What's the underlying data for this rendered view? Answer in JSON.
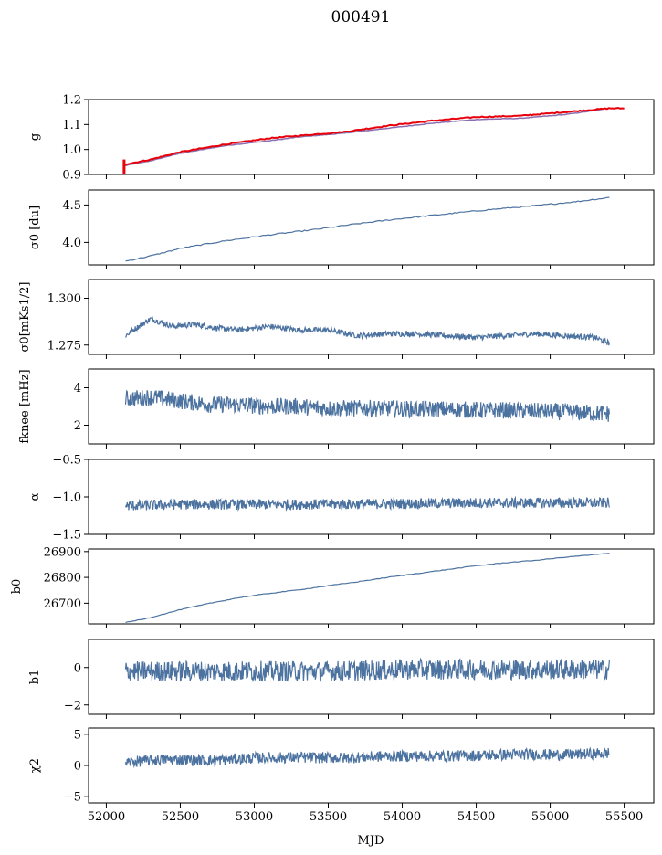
{
  "figure": {
    "title": "000491",
    "xlabel": "MJD",
    "xlim": [
      51880,
      55700
    ],
    "xticks": [
      "52000",
      "52500",
      "53000",
      "53500",
      "54000",
      "54500",
      "55000",
      "55500"
    ],
    "line_color": "#4c72a0",
    "highlight_color": "#e8000b",
    "purple_color": "#8a6fb0"
  },
  "chart_data": [
    {
      "type": "line",
      "ylabel": "g",
      "ylim": [
        0.9,
        1.2
      ],
      "yticks": [
        "0.9",
        "1.0",
        "1.1",
        "1.2"
      ],
      "series": [
        {
          "x": [
            52120,
            52300,
            52500,
            52800,
            53100,
            53300,
            53600,
            53900,
            54200,
            54500,
            54800,
            55100,
            55350
          ],
          "values": [
            0.935,
            0.955,
            0.985,
            1.015,
            1.035,
            1.05,
            1.065,
            1.085,
            1.105,
            1.12,
            1.125,
            1.14,
            1.16
          ]
        },
        {
          "x": [
            52120,
            52300,
            52500,
            52800,
            53100,
            53300,
            53600,
            53900,
            54200,
            54500,
            54800,
            55100,
            55400,
            55500
          ],
          "values": [
            0.94,
            0.96,
            0.99,
            1.02,
            1.045,
            1.055,
            1.07,
            1.095,
            1.115,
            1.13,
            1.135,
            1.15,
            1.165,
            1.165
          ]
        }
      ]
    },
    {
      "type": "line",
      "ylabel": "σ0 [du]",
      "ylim": [
        3.7,
        4.7
      ],
      "yticks": [
        "4.0",
        "4.5"
      ],
      "series": [
        {
          "x": [
            52130,
            52300,
            52500,
            52800,
            53100,
            53400,
            53700,
            54000,
            54300,
            54600,
            54900,
            55200,
            55400
          ],
          "values": [
            3.75,
            3.82,
            3.92,
            4.02,
            4.1,
            4.17,
            4.25,
            4.32,
            4.38,
            4.44,
            4.49,
            4.55,
            4.6
          ]
        }
      ]
    },
    {
      "type": "line",
      "ylabel": "σ0[mKs1/2]",
      "ylim": [
        1.27,
        1.31
      ],
      "yticks": [
        "1.275",
        "1.300"
      ],
      "series": [
        {
          "x": [
            52130,
            52200,
            52300,
            52450,
            52600,
            52750,
            52900,
            53100,
            53300,
            53500,
            53700,
            53900,
            54100,
            54300,
            54500,
            54700,
            54900,
            55100,
            55300,
            55400
          ],
          "values": [
            1.28,
            1.284,
            1.289,
            1.285,
            1.286,
            1.284,
            1.283,
            1.285,
            1.283,
            1.283,
            1.28,
            1.281,
            1.281,
            1.28,
            1.279,
            1.28,
            1.281,
            1.28,
            1.279,
            1.276
          ]
        }
      ]
    },
    {
      "type": "line",
      "ylabel": "fknee [mHz]",
      "ylim": [
        1,
        5
      ],
      "yticks": [
        "2",
        "4"
      ],
      "series": [
        {
          "x": [
            52130,
            52300,
            52500,
            52700,
            52900,
            53100,
            53300,
            53500,
            53700,
            53900,
            54100,
            54300,
            54500,
            54700,
            54900,
            55100,
            55300,
            55400
          ],
          "values": [
            3.4,
            3.5,
            3.3,
            3.1,
            3.1,
            3.0,
            3.0,
            2.9,
            2.9,
            2.9,
            2.85,
            2.85,
            2.8,
            2.8,
            2.75,
            2.7,
            2.65,
            2.6
          ]
        }
      ]
    },
    {
      "type": "line",
      "ylabel": "α",
      "ylim": [
        -1.5,
        -0.5
      ],
      "yticks": [
        "−1.5",
        "−1.0",
        "−0.5"
      ],
      "series": [
        {
          "x": [
            52130,
            52500,
            53000,
            53500,
            54000,
            54500,
            55000,
            55400
          ],
          "values": [
            -1.12,
            -1.1,
            -1.1,
            -1.1,
            -1.09,
            -1.08,
            -1.08,
            -1.08
          ]
        }
      ]
    },
    {
      "type": "line",
      "ylabel": "b0",
      "ylim": [
        26620,
        26910
      ],
      "yticks": [
        "26700",
        "26800",
        "26900"
      ],
      "series": [
        {
          "x": [
            52130,
            52300,
            52500,
            52700,
            52900,
            53100,
            53300,
            53500,
            53700,
            53900,
            54100,
            54300,
            54500,
            54700,
            54900,
            55100,
            55300,
            55400
          ],
          "values": [
            26625,
            26645,
            26675,
            26700,
            26722,
            26738,
            26752,
            26768,
            26783,
            26800,
            26815,
            26830,
            26845,
            26857,
            26866,
            26878,
            26888,
            26893
          ]
        }
      ]
    },
    {
      "type": "line",
      "ylabel": "b1",
      "ylim": [
        -2.5,
        1.5
      ],
      "yticks": [
        "−2",
        "0"
      ],
      "series": [
        {
          "x": [
            52130,
            52500,
            53000,
            53500,
            54000,
            54500,
            55000,
            55400
          ],
          "values": [
            -0.2,
            -0.2,
            -0.2,
            -0.2,
            -0.1,
            -0.1,
            -0.1,
            -0.1
          ]
        }
      ]
    },
    {
      "type": "line",
      "ylabel": "χ2",
      "ylim": [
        -6,
        6
      ],
      "yticks": [
        "−5",
        "0",
        "5"
      ],
      "series": [
        {
          "x": [
            52130,
            52400,
            52700,
            53000,
            53300,
            53600,
            53900,
            54200,
            54500,
            54800,
            55100,
            55400
          ],
          "values": [
            0.5,
            1.0,
            0.8,
            1.2,
            1.3,
            1.2,
            1.5,
            1.5,
            1.6,
            1.8,
            1.7,
            2.0
          ]
        }
      ]
    }
  ]
}
